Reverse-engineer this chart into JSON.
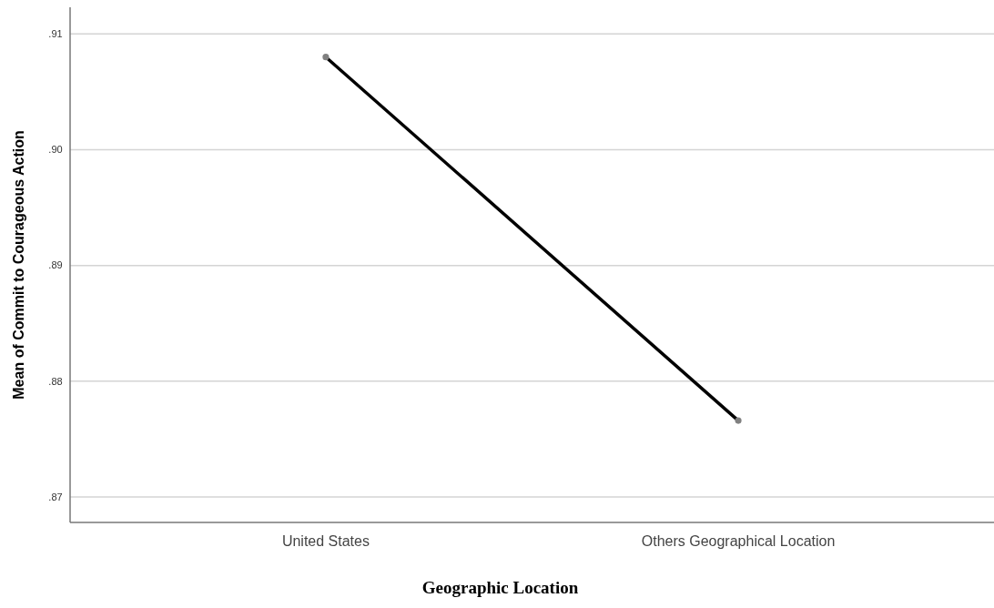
{
  "chart_data": {
    "type": "line",
    "xlabel": "Geographic Location",
    "ylabel": "Mean of Commit to Courageous Action",
    "categories": [
      "United States",
      "Others Geographical Location"
    ],
    "series": [
      {
        "color": "#000000",
        "values": [
          0.908,
          0.8766
        ]
      }
    ],
    "ylim": [
      0.8678,
      0.9123
    ],
    "yticks": [
      {
        "value": 0.87,
        "label": ".87"
      },
      {
        "value": 0.88,
        "label": ".88"
      },
      {
        "value": 0.89,
        "label": ".89"
      },
      {
        "value": 0.9,
        "label": ".90"
      },
      {
        "value": 0.91,
        "label": ".91"
      }
    ],
    "grid": "y",
    "marker": "circle",
    "line_style": "solid"
  }
}
